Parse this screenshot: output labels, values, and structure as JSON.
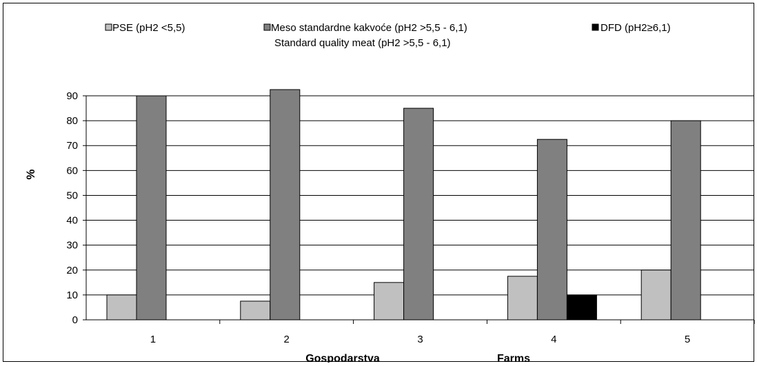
{
  "chart_data": {
    "type": "bar",
    "categories": [
      "1",
      "2",
      "3",
      "4",
      "5"
    ],
    "series": [
      {
        "name": "PSE (pH2 <5,5)",
        "values": [
          10,
          7.5,
          15,
          17.5,
          20
        ],
        "color": "#c0c0c0"
      },
      {
        "name": "Meso standardne kakvoće (pH2 >5,5 - 6,1)",
        "name_line2": "Standard quality meat (pH2 >5,5 - 6,1)",
        "values": [
          90,
          92.5,
          85,
          72.5,
          80
        ],
        "color": "#808080"
      },
      {
        "name": "DFD (pH2≥6,1)",
        "values": [
          0,
          0,
          0,
          10,
          0
        ],
        "color": "#000000"
      }
    ],
    "yticks": [
      0,
      10,
      20,
      30,
      40,
      50,
      60,
      70,
      80,
      90
    ],
    "ylim": [
      0,
      90
    ],
    "ylabel": "%",
    "xlabel": "Gospodarstva",
    "xlabel_en": "Farms",
    "grid": true,
    "legend_position": "top"
  }
}
